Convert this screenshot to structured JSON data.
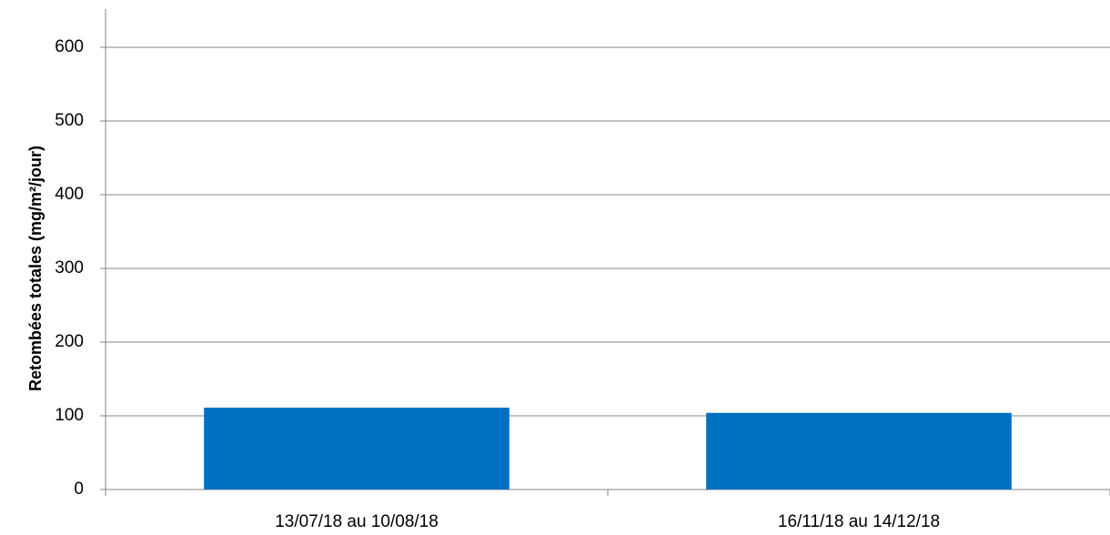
{
  "chart_data": {
    "type": "bar",
    "y_label": "Retombées totales (mg/m²/jour)",
    "categories": [
      "13/07/18 au 10/08/18",
      "16/11/18 au 14/12/18"
    ],
    "values": [
      111,
      104
    ],
    "color": "#0070c0",
    "ylim": [
      0,
      600
    ],
    "yticks": [
      0,
      100,
      200,
      300,
      400,
      500,
      600
    ],
    "grid": true
  }
}
